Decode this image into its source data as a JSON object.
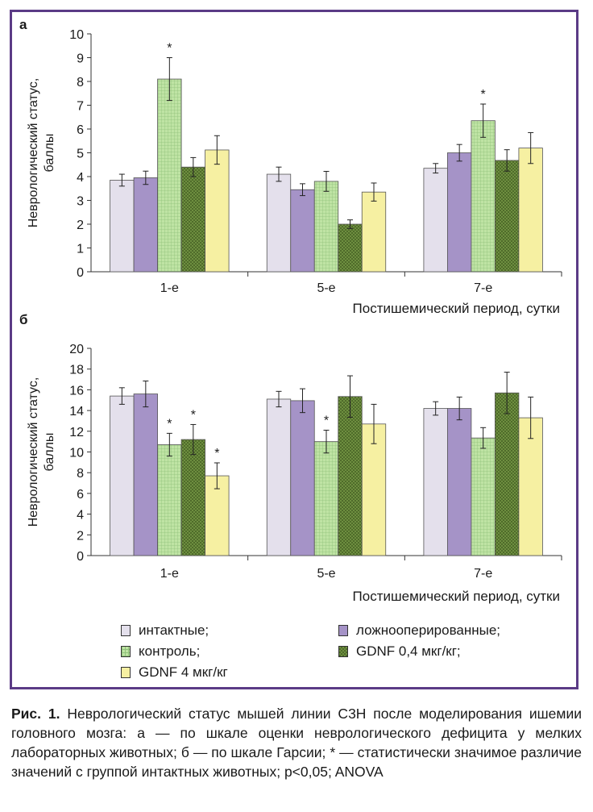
{
  "colors": {
    "frame": "#5b3b86",
    "intact": "#e4e0ec",
    "sham": "#a593c7",
    "control": "#bfe3a4",
    "gdnf04": "#6e8f40",
    "gdnf4": "#f6f0a2"
  },
  "legend": {
    "items": [
      {
        "label": "интактные;",
        "color_key": "intact",
        "pattern": "none"
      },
      {
        "label": "ложнооперированные;",
        "color_key": "sham",
        "pattern": "none"
      },
      {
        "label": "контроль;",
        "color_key": "control",
        "pattern": "grid"
      },
      {
        "label": "GDNF 0,4 мкг/кг;",
        "color_key": "gdnf04",
        "pattern": "checker"
      },
      {
        "label": "GDNF 4 мкг/кг",
        "color_key": "gdnf4",
        "pattern": "none"
      }
    ]
  },
  "caption": {
    "lead": "Рис. 1.",
    "text": " Неврологический статус мышей линии C3H после моделирования ишемии головного мозга: а — по шкале оценки неврологического дефицита у мелких лабораторных животных; б — по шкале Гарсии; * — статистически значимое различие значений с группой интактных животных; p<0,05; ANOVA"
  },
  "chart_data": [
    {
      "panel_label": "а",
      "type": "bar",
      "categories": [
        "1-е",
        "5-е",
        "7-е"
      ],
      "xlabel": "Постишемический период, сутки",
      "ylabel": [
        "Неврологический статус,",
        "баллы"
      ],
      "ylim": [
        0,
        10
      ],
      "yticks": [
        0,
        1,
        2,
        3,
        4,
        5,
        6,
        7,
        8,
        9,
        10
      ],
      "grid": false,
      "series": [
        {
          "color_key": "intact",
          "values": [
            3.85,
            4.1,
            4.35
          ],
          "errors": [
            0.25,
            0.3,
            0.2
          ],
          "stars": [
            false,
            false,
            false
          ]
        },
        {
          "color_key": "sham",
          "values": [
            3.95,
            3.45,
            5.0
          ],
          "errors": [
            0.28,
            0.25,
            0.35
          ],
          "stars": [
            false,
            false,
            false
          ]
        },
        {
          "color_key": "control",
          "values": [
            8.1,
            3.8,
            6.35
          ],
          "errors": [
            0.9,
            0.42,
            0.7
          ],
          "stars": [
            true,
            false,
            true
          ]
        },
        {
          "color_key": "gdnf04",
          "values": [
            4.4,
            2.0,
            4.68
          ],
          "errors": [
            0.4,
            0.18,
            0.45
          ],
          "stars": [
            false,
            false,
            false
          ]
        },
        {
          "color_key": "gdnf4",
          "values": [
            5.12,
            3.35,
            5.2
          ],
          "errors": [
            0.6,
            0.38,
            0.65
          ],
          "stars": [
            false,
            false,
            false
          ]
        }
      ]
    },
    {
      "panel_label": "б",
      "type": "bar",
      "categories": [
        "1-е",
        "5-е",
        "7-е"
      ],
      "xlabel": "Постишемический период, сутки",
      "ylabel": [
        "Неврологический статус,",
        "баллы"
      ],
      "ylim": [
        0,
        20
      ],
      "yticks": [
        0,
        2,
        4,
        6,
        8,
        10,
        12,
        14,
        16,
        18,
        20
      ],
      "grid": false,
      "series": [
        {
          "color_key": "intact",
          "values": [
            15.4,
            15.1,
            14.2
          ],
          "errors": [
            0.8,
            0.75,
            0.65
          ],
          "stars": [
            false,
            false,
            false
          ]
        },
        {
          "color_key": "sham",
          "values": [
            15.6,
            14.95,
            14.2
          ],
          "errors": [
            1.25,
            1.15,
            1.1
          ],
          "stars": [
            false,
            false,
            false
          ]
        },
        {
          "color_key": "control",
          "values": [
            10.7,
            11.0,
            11.35
          ],
          "errors": [
            1.1,
            1.1,
            1.0
          ],
          "stars": [
            true,
            true,
            false
          ]
        },
        {
          "color_key": "gdnf04",
          "values": [
            11.2,
            15.35,
            15.7
          ],
          "errors": [
            1.45,
            2.0,
            2.0
          ],
          "stars": [
            true,
            false,
            false
          ]
        },
        {
          "color_key": "gdnf4",
          "values": [
            7.7,
            12.7,
            13.3
          ],
          "errors": [
            1.25,
            1.9,
            2.0
          ],
          "stars": [
            true,
            false,
            false
          ]
        }
      ]
    }
  ]
}
